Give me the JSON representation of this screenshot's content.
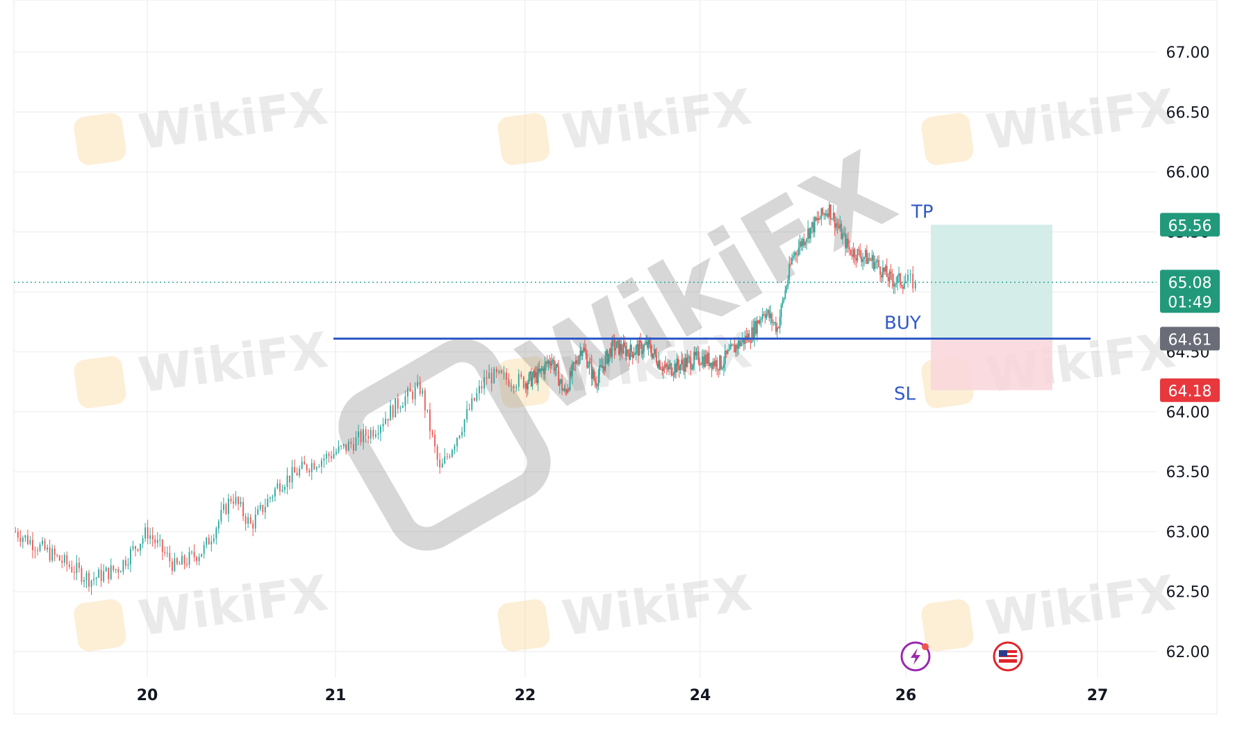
{
  "chart_data": {
    "type": "candlestick",
    "title": "",
    "xlabel": "",
    "ylabel": "",
    "x_tick_labels": [
      "20",
      "21",
      "22",
      "24",
      "26",
      "27"
    ],
    "y_tick_labels": [
      "67.00",
      "66.50",
      "66.00",
      "65.50",
      "65.00",
      "64.50",
      "64.00",
      "63.50",
      "63.00",
      "62.50",
      "62.00"
    ],
    "ylim": [
      61.8,
      67.3
    ],
    "grid": true,
    "price_path": [
      {
        "t": 19.3,
        "p": 63.0
      },
      {
        "t": 19.5,
        "p": 62.8
      },
      {
        "t": 19.7,
        "p": 62.6
      },
      {
        "t": 19.85,
        "p": 62.7
      },
      {
        "t": 20.0,
        "p": 63.0
      },
      {
        "t": 20.15,
        "p": 62.7
      },
      {
        "t": 20.3,
        "p": 62.85
      },
      {
        "t": 20.45,
        "p": 63.3
      },
      {
        "t": 20.55,
        "p": 63.05
      },
      {
        "t": 20.7,
        "p": 63.4
      },
      {
        "t": 20.85,
        "p": 63.55
      },
      {
        "t": 21.05,
        "p": 63.7
      },
      {
        "t": 21.2,
        "p": 63.85
      },
      {
        "t": 21.35,
        "p": 64.1
      },
      {
        "t": 21.45,
        "p": 64.2
      },
      {
        "t": 21.55,
        "p": 63.5
      },
      {
        "t": 21.7,
        "p": 64.0
      },
      {
        "t": 21.8,
        "p": 64.3
      },
      {
        "t": 22.0,
        "p": 64.25
      },
      {
        "t": 22.15,
        "p": 64.3
      },
      {
        "t": 22.3,
        "p": 64.45
      },
      {
        "t": 22.45,
        "p": 64.15
      },
      {
        "t": 22.65,
        "p": 64.55
      },
      {
        "t": 22.8,
        "p": 64.25
      },
      {
        "t": 23.0,
        "p": 64.55
      },
      {
        "t": 23.2,
        "p": 64.5
      },
      {
        "t": 23.4,
        "p": 64.55
      },
      {
        "t": 23.6,
        "p": 64.35
      },
      {
        "t": 23.8,
        "p": 64.4
      },
      {
        "t": 24.0,
        "p": 64.45
      },
      {
        "t": 24.2,
        "p": 64.4
      },
      {
        "t": 24.35,
        "p": 64.55
      },
      {
        "t": 24.5,
        "p": 64.65
      },
      {
        "t": 24.62,
        "p": 64.85
      },
      {
        "t": 24.75,
        "p": 64.7
      },
      {
        "t": 24.9,
        "p": 65.3
      },
      {
        "t": 25.05,
        "p": 65.5
      },
      {
        "t": 25.25,
        "p": 65.7
      },
      {
        "t": 25.45,
        "p": 65.35
      },
      {
        "t": 25.7,
        "p": 65.25
      },
      {
        "t": 25.85,
        "p": 65.1
      },
      {
        "t": 26.05,
        "p": 65.08
      }
    ],
    "last_price": 65.08,
    "price_tag_time": "01:49",
    "position": {
      "type": "long",
      "tp_label": "TP",
      "entry_label": "BUY",
      "sl_label": "SL",
      "tp": 65.56,
      "entry": 64.61,
      "sl": 64.18,
      "tp_text": "65.56",
      "entry_text": "64.61",
      "sl_text": "64.18",
      "last_text": "65.08"
    },
    "colors": {
      "up": "#26a69a",
      "down": "#ef5350",
      "buy_line": "#2f59c9",
      "tp_zone": "#cdeae4",
      "sl_zone": "#f9d6da",
      "tp_tag": "#22997b",
      "sl_tag": "#e8383d",
      "entry_tag": "#6a6d78",
      "grid": "#f0f1f3"
    }
  },
  "watermark": {
    "brand": "WikiFX"
  },
  "icons": [
    "lightning-icon",
    "us-flag-icon"
  ]
}
